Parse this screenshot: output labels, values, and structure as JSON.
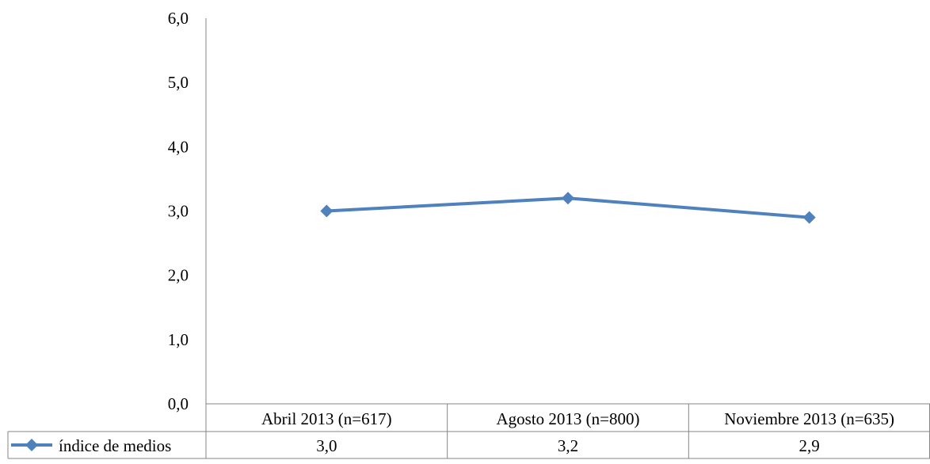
{
  "chart_data": {
    "type": "line",
    "title": "",
    "xlabel": "",
    "ylabel": "",
    "categories": [
      "Abril 2013 (n=617)",
      "Agosto 2013 (n=800)",
      "Noviembre 2013 (n=635)"
    ],
    "series": [
      {
        "name": "índice de medios",
        "values": [
          3.0,
          3.2,
          2.9
        ],
        "value_labels": [
          "3,0",
          "3,2",
          "2,9"
        ],
        "color": "#4F81BD",
        "marker": "diamond"
      }
    ],
    "ylim": [
      0,
      6
    ],
    "yticks": [
      0,
      1,
      2,
      3,
      4,
      5,
      6
    ],
    "ytick_labels": [
      "0,0",
      "1,0",
      "2,0",
      "3,0",
      "4,0",
      "5,0",
      "6,0"
    ],
    "grid": false,
    "legend": "data-table",
    "data_table": true
  }
}
